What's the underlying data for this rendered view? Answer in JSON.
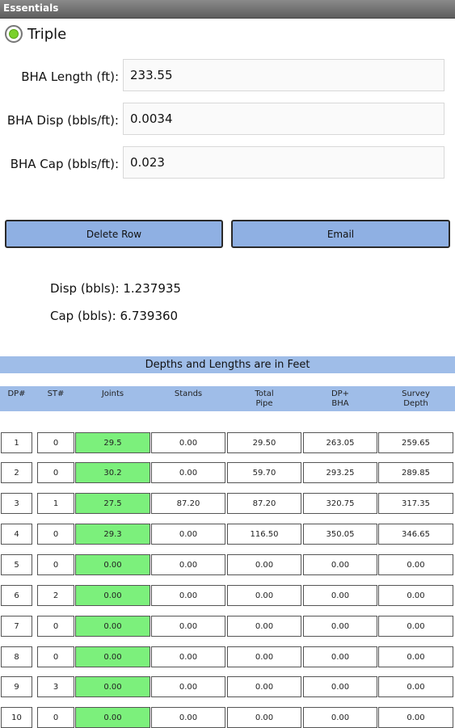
{
  "window": {
    "title": "Essentials"
  },
  "mode": {
    "label": "Triple",
    "selected": true
  },
  "fields": [
    {
      "label": "BHA Length (ft):",
      "value": "233.55"
    },
    {
      "label": "BHA Disp (bbls/ft):",
      "value": "0.0034"
    },
    {
      "label": "BHA Cap (bbls/ft):",
      "value": "0.023"
    }
  ],
  "buttons": {
    "delete_row": "Delete Row",
    "email": "Email"
  },
  "results": {
    "disp": "Disp (bbls): 1.237935",
    "cap": "Cap (bbls): 6.739360"
  },
  "table": {
    "banner": "Depths and Lengths are in Feet",
    "headers": [
      "DP#",
      "ST#",
      "Joints",
      "Stands",
      "Total\nPipe",
      "DP+\nBHA",
      "Survey\nDepth"
    ],
    "rows": [
      [
        "1",
        "0",
        "29.5",
        "0.00",
        "29.50",
        "263.05",
        "259.65"
      ],
      [
        "2",
        "0",
        "30.2",
        "0.00",
        "59.70",
        "293.25",
        "289.85"
      ],
      [
        "3",
        "1",
        "27.5",
        "87.20",
        "87.20",
        "320.75",
        "317.35"
      ],
      [
        "4",
        "0",
        "29.3",
        "0.00",
        "116.50",
        "350.05",
        "346.65"
      ],
      [
        "5",
        "0",
        "0.00",
        "0.00",
        "0.00",
        "0.00",
        "0.00"
      ],
      [
        "6",
        "2",
        "0.00",
        "0.00",
        "0.00",
        "0.00",
        "0.00"
      ],
      [
        "7",
        "0",
        "0.00",
        "0.00",
        "0.00",
        "0.00",
        "0.00"
      ],
      [
        "8",
        "0",
        "0.00",
        "0.00",
        "0.00",
        "0.00",
        "0.00"
      ],
      [
        "9",
        "3",
        "0.00",
        "0.00",
        "0.00",
        "0.00",
        "0.00"
      ],
      [
        "10",
        "0",
        "0.00",
        "0.00",
        "0.00",
        "0.00",
        "0.00"
      ]
    ]
  },
  "colors": {
    "accent": "#9fbde8",
    "joints_cell": "#7cf07c",
    "radio_dot": "#7bd12c"
  }
}
